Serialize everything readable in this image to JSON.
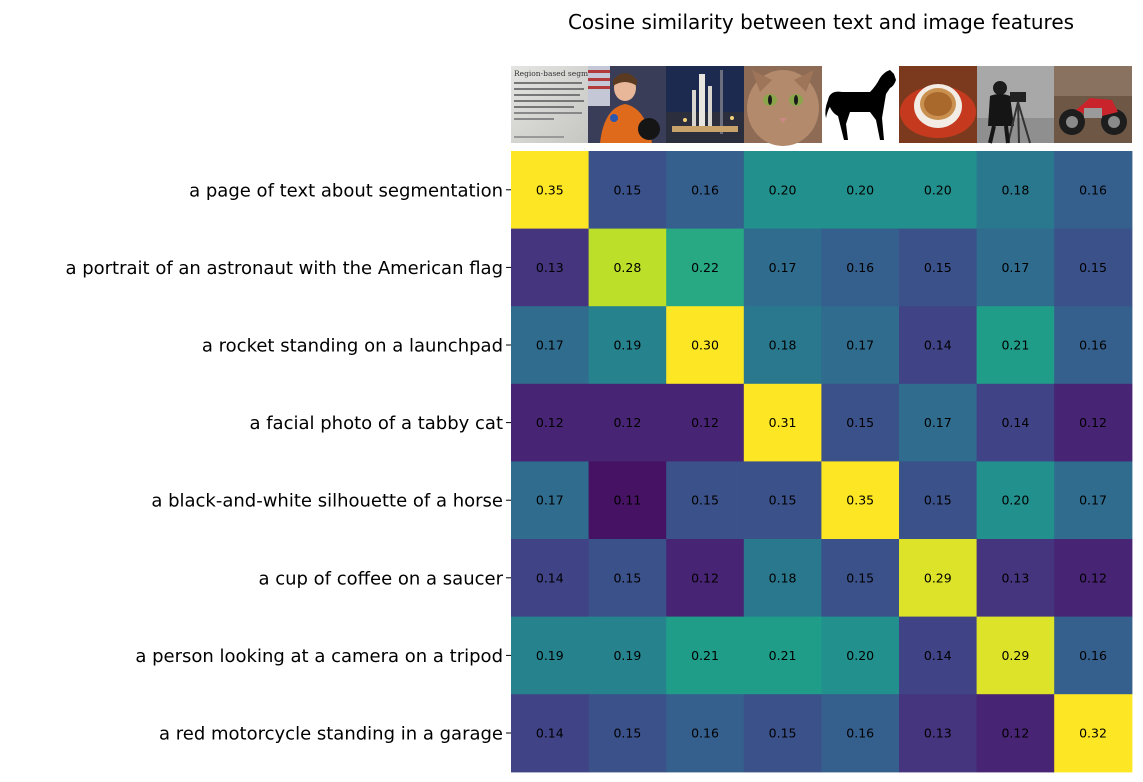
{
  "chart_data": {
    "type": "heatmap",
    "title": "Cosine similarity between text and image features",
    "row_labels": [
      "a page of text about segmentation",
      "a portrait of an astronaut with the American flag",
      "a rocket standing on a launchpad",
      "a facial photo of a tabby cat",
      "a black-and-white silhouette of a horse",
      "a cup of coffee on a saucer",
      "a person looking at a camera on a tripod",
      "a red motorcycle standing in a garage"
    ],
    "column_images": [
      "page-of-text",
      "astronaut",
      "rocket",
      "tabby-cat",
      "horse-silhouette",
      "coffee-cup",
      "cameraman",
      "motorcycle"
    ],
    "values": [
      [
        0.35,
        0.15,
        0.16,
        0.2,
        0.2,
        0.2,
        0.18,
        0.16
      ],
      [
        0.13,
        0.28,
        0.22,
        0.17,
        0.16,
        0.15,
        0.17,
        0.15
      ],
      [
        0.17,
        0.19,
        0.3,
        0.18,
        0.17,
        0.14,
        0.21,
        0.16
      ],
      [
        0.12,
        0.12,
        0.12,
        0.31,
        0.15,
        0.17,
        0.14,
        0.12
      ],
      [
        0.17,
        0.11,
        0.15,
        0.15,
        0.35,
        0.15,
        0.2,
        0.17
      ],
      [
        0.14,
        0.15,
        0.12,
        0.18,
        0.15,
        0.29,
        0.13,
        0.12
      ],
      [
        0.19,
        0.19,
        0.21,
        0.21,
        0.2,
        0.14,
        0.29,
        0.16
      ],
      [
        0.14,
        0.15,
        0.16,
        0.15,
        0.16,
        0.13,
        0.12,
        0.32
      ]
    ],
    "colormap": "viridis",
    "color_range": [
      0.1,
      0.3
    ],
    "image_text": "Region-based segmentation",
    "grid": false
  }
}
